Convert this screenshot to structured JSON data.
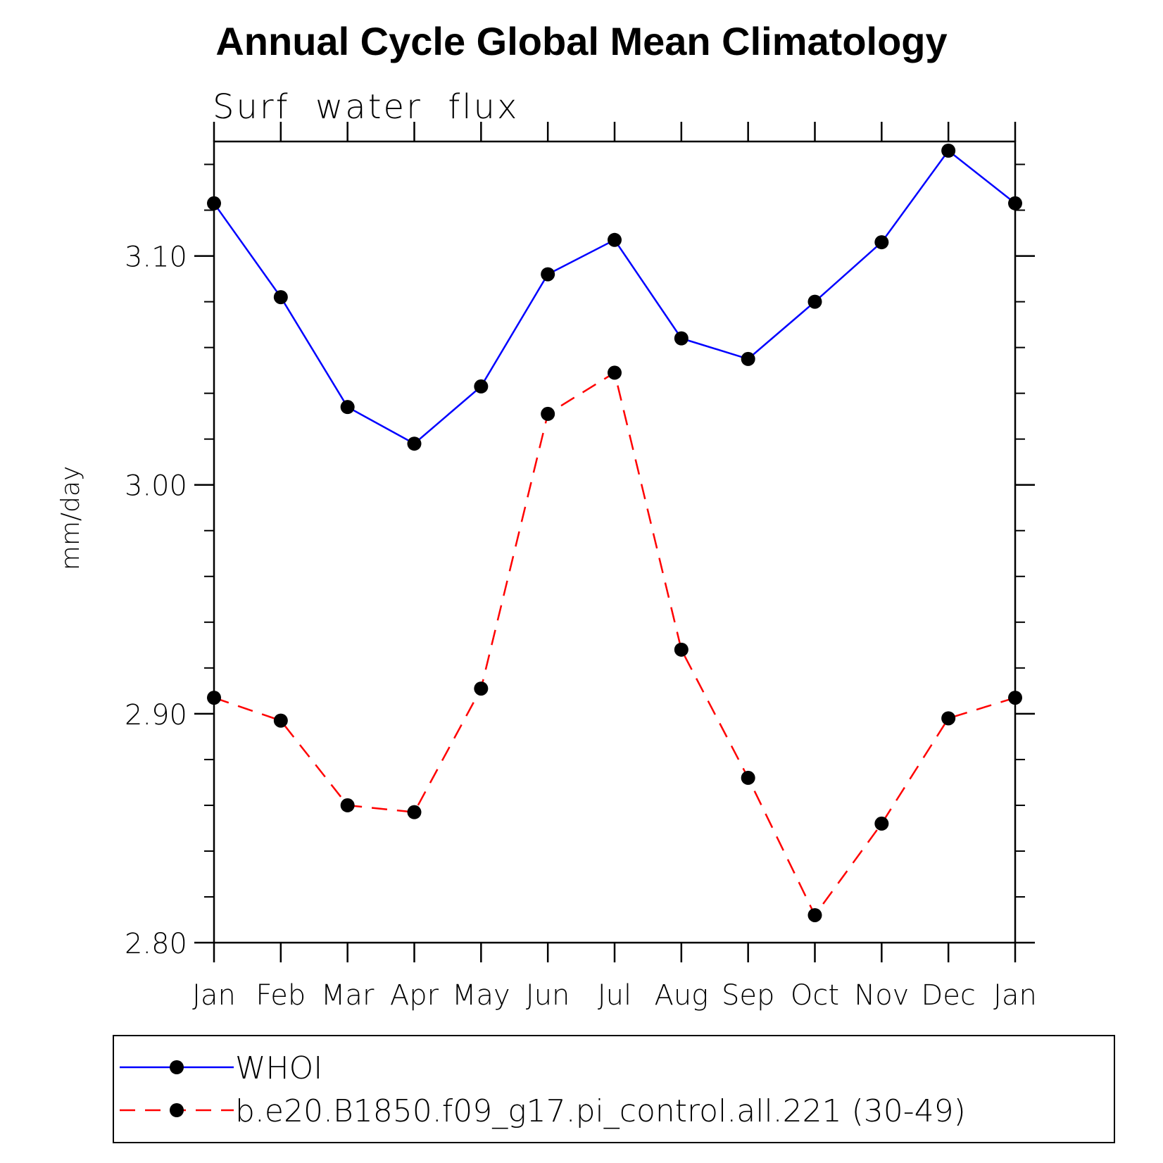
{
  "chart_data": {
    "type": "line",
    "title": "Annual Cycle Global Mean Climatology",
    "subtitle": "Surf  water  flux",
    "xlabel": "",
    "ylabel": "mm/day",
    "categories": [
      "Jan",
      "Feb",
      "Mar",
      "Apr",
      "May",
      "Jun",
      "Jul",
      "Aug",
      "Sep",
      "Oct",
      "Nov",
      "Dec",
      "Jan"
    ],
    "ylim": [
      2.8,
      3.15
    ],
    "yticks": [
      "2.80",
      "2.90",
      "3.00",
      "3.10"
    ],
    "ytick_values": [
      2.8,
      2.9,
      3.0,
      3.1
    ],
    "series": [
      {
        "name": "WHOI",
        "color": "#0000ff",
        "dash": "solid",
        "values": [
          3.123,
          3.082,
          3.034,
          3.018,
          3.043,
          3.092,
          3.107,
          3.064,
          3.055,
          3.08,
          3.106,
          3.146,
          3.123
        ]
      },
      {
        "name": "b.e20.B1850.f09_g17.pi_control.all.221 (30-49)",
        "color": "#ff0000",
        "dash": "dashed",
        "values": [
          2.907,
          2.897,
          2.86,
          2.857,
          2.911,
          3.031,
          3.049,
          2.928,
          2.872,
          2.812,
          2.852,
          2.898,
          2.907
        ]
      }
    ],
    "legend_position": "bottom",
    "grid": false
  }
}
